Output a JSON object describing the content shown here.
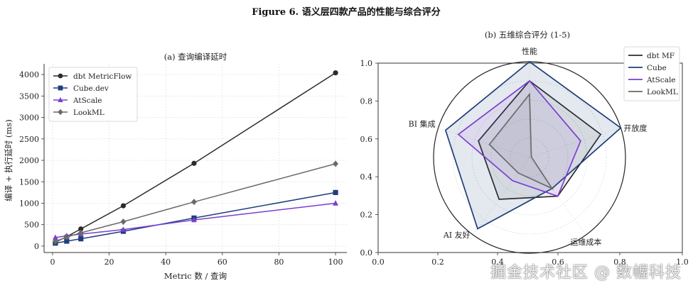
{
  "figure_title": "Figure 6. 语义层四款产品的性能与综合评分",
  "watermark": "掘金技术社区 @ 数幄科技",
  "chart_data": [
    {
      "type": "line",
      "title": "(a) 查询编译延时",
      "xlabel": "Metric 数 / 查询",
      "ylabel": "编译 + 执行延时 (ms)",
      "xlim": [
        -3,
        104
      ],
      "ylim": [
        -150,
        4250
      ],
      "xticks": [
        0,
        20,
        40,
        60,
        80,
        100
      ],
      "yticks": [
        0,
        500,
        1000,
        1500,
        2000,
        2500,
        3000,
        3500,
        4000
      ],
      "grid": true,
      "legend_position": "top-left",
      "x": [
        1,
        5,
        10,
        25,
        50,
        100
      ],
      "series": [
        {
          "name": "dbt MetricFlow",
          "color": "#2b2b2b",
          "marker": "circle",
          "values": [
            90,
            220,
            400,
            940,
            1930,
            4040
          ]
        },
        {
          "name": "Cube.dev",
          "color": "#1f3f7a",
          "marker": "square",
          "values": [
            70,
            115,
            170,
            345,
            655,
            1250
          ]
        },
        {
          "name": "AtScale",
          "color": "#7a3fd1",
          "marker": "triangle",
          "values": [
            200,
            240,
            280,
            385,
            610,
            1000
          ]
        },
        {
          "name": "LookML",
          "color": "#6a6a6a",
          "marker": "diamond",
          "values": [
            110,
            210,
            310,
            570,
            1030,
            1920
          ]
        }
      ]
    },
    {
      "type": "radar",
      "title": "(b) 五维综合评分 (1-5)",
      "axes": [
        "性能",
        "开放度",
        "运维成本",
        "AI 友好",
        "BI 集成"
      ],
      "range": [
        0,
        5
      ],
      "frame_ticks": {
        "x": [
          "0.0",
          "0.2",
          "0.4",
          "0.6",
          "0.8",
          "1.0"
        ],
        "y": [
          "0.0",
          "0.2",
          "0.4",
          "0.6",
          "0.8",
          "1.0"
        ]
      },
      "legend_position": "top-right",
      "series": [
        {
          "name": "dbt MF",
          "color": "#2b2b2b",
          "values": [
            4.0,
            3.9,
            2.5,
            2.7,
            2.8
          ],
          "fill": false
        },
        {
          "name": "Cube",
          "color": "#1f3f7a",
          "values": [
            5.0,
            5.0,
            2.0,
            4.6,
            4.6
          ],
          "fill": true
        },
        {
          "name": "AtScale",
          "color": "#7a3fd1",
          "values": [
            4.0,
            2.8,
            2.5,
            1.5,
            3.9
          ],
          "fill": false
        },
        {
          "name": "LookML",
          "color": "#6a6a6a",
          "values": [
            3.3,
            0.1,
            2.0,
            1.0,
            2.2
          ],
          "fill": false
        }
      ]
    }
  ]
}
